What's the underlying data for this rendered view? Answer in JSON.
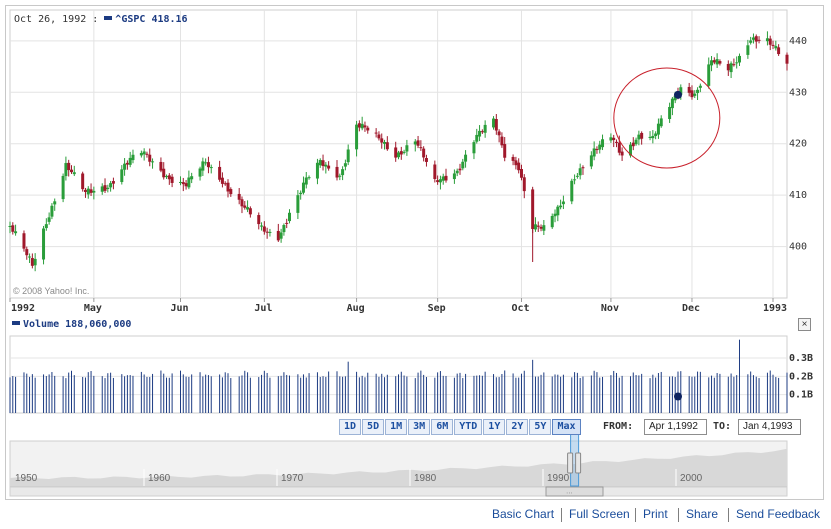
{
  "legend": {
    "date": "Oct 26, 1992 :",
    "symbol": "^GSPC",
    "value": "418.16",
    "volume_label": "Volume",
    "volume_value": "188,060,000"
  },
  "watermark": "© 2008 Yahoo! Inc.",
  "chart_data": [
    {
      "type": "candlestick",
      "series": [
        {
          "name": "^GSPC"
        }
      ],
      "ylim": [
        390,
        446
      ],
      "yticks": [
        400,
        410,
        420,
        430,
        440
      ],
      "xticks": [
        "1992",
        "May",
        "Jun",
        "Jul",
        "Aug",
        "Sep",
        "Oct",
        "Nov",
        "Dec",
        "1993"
      ],
      "x_range": [
        "1992-04-01",
        "1993-01-04"
      ],
      "grid": true,
      "colors": {
        "up": "#2a9d3a",
        "down": "#a0182b",
        "highlight": "#c8202b",
        "marker": "#0e2360"
      },
      "close_points": [
        {
          "x": "1992-04-01",
          "y": 404
        },
        {
          "x": "1992-04-09",
          "y": 396
        },
        {
          "x": "1992-04-14",
          "y": 405
        },
        {
          "x": "1992-04-21",
          "y": 416
        },
        {
          "x": "1992-04-28",
          "y": 410
        },
        {
          "x": "1992-05-06",
          "y": 412
        },
        {
          "x": "1992-05-12",
          "y": 416
        },
        {
          "x": "1992-05-18",
          "y": 418
        },
        {
          "x": "1992-05-27",
          "y": 414
        },
        {
          "x": "1992-06-03",
          "y": 412
        },
        {
          "x": "1992-06-10",
          "y": 416
        },
        {
          "x": "1992-06-16",
          "y": 413
        },
        {
          "x": "1992-06-22",
          "y": 409
        },
        {
          "x": "1992-06-30",
          "y": 403
        },
        {
          "x": "1992-07-06",
          "y": 402
        },
        {
          "x": "1992-07-10",
          "y": 407
        },
        {
          "x": "1992-07-15",
          "y": 412
        },
        {
          "x": "1992-07-21",
          "y": 416
        },
        {
          "x": "1992-07-28",
          "y": 414
        },
        {
          "x": "1992-08-03",
          "y": 424
        },
        {
          "x": "1992-08-10",
          "y": 421
        },
        {
          "x": "1992-08-17",
          "y": 418
        },
        {
          "x": "1992-08-24",
          "y": 421
        },
        {
          "x": "1992-08-31",
          "y": 412
        },
        {
          "x": "1992-09-08",
          "y": 415
        },
        {
          "x": "1992-09-14",
          "y": 421
        },
        {
          "x": "1992-09-21",
          "y": 424
        },
        {
          "x": "1992-09-25",
          "y": 418
        },
        {
          "x": "1992-09-30",
          "y": 416
        },
        {
          "x": "1992-10-05",
          "y": 404
        },
        {
          "x": "1992-10-09",
          "y": 403
        },
        {
          "x": "1992-10-14",
          "y": 407
        },
        {
          "x": "1992-10-20",
          "y": 414
        },
        {
          "x": "1992-10-26",
          "y": 418
        },
        {
          "x": "1992-11-02",
          "y": 421
        },
        {
          "x": "1992-11-06",
          "y": 418
        },
        {
          "x": "1992-11-12",
          "y": 422
        },
        {
          "x": "1992-11-17",
          "y": 421
        },
        {
          "x": "1992-11-23",
          "y": 427
        },
        {
          "x": "1992-11-27",
          "y": 431
        },
        {
          "x": "1992-12-02",
          "y": 430
        },
        {
          "x": "1992-12-08",
          "y": 436
        },
        {
          "x": "1992-12-14",
          "y": 434
        },
        {
          "x": "1992-12-18",
          "y": 437
        },
        {
          "x": "1992-12-22",
          "y": 441
        },
        {
          "x": "1992-12-28",
          "y": 440
        },
        {
          "x": "1993-01-04",
          "y": 435
        }
      ],
      "annotations": [
        {
          "type": "circle",
          "label": "",
          "center": {
            "x": "1992-11-22",
            "y": 425
          }
        },
        {
          "type": "marker",
          "label": "",
          "at": {
            "x": "1992-11-26",
            "y": 429.5
          }
        }
      ]
    },
    {
      "type": "bar",
      "series": [
        {
          "name": "Volume"
        }
      ],
      "yticks": [
        "0.1B",
        "0.2B",
        "0.3B"
      ],
      "ylim": [
        0,
        0.42
      ],
      "values_approx": "mostly ~0.19B-0.22B per day with spikes",
      "spikes": [
        {
          "x": "1992-07-31",
          "value": 0.28
        },
        {
          "x": "1992-10-05",
          "value": 0.29
        },
        {
          "x": "1992-12-18",
          "value": 0.4
        }
      ],
      "annotations": [
        {
          "type": "marker",
          "label": "",
          "at": {
            "x": "1992-11-26",
            "value": 0.09
          }
        }
      ]
    },
    {
      "type": "area",
      "series": [
        {
          "name": "^GSPC history"
        }
      ],
      "xticks": [
        "1950",
        "1960",
        "1970",
        "1980",
        "1990",
        "2000"
      ],
      "selection": [
        "1992",
        "1993"
      ]
    }
  ],
  "range_buttons": [
    "1D",
    "5D",
    "1M",
    "3M",
    "6M",
    "YTD",
    "1Y",
    "2Y",
    "5Y",
    "Max"
  ],
  "range_active": "Max",
  "from_label": "FROM:",
  "from_value": "Apr 1,1992",
  "to_label": "TO:",
  "to_value": "Jan 4,1993",
  "close_symbol": "×",
  "footer_links": [
    "Basic Chart",
    "Full Screen",
    "Print",
    "Share",
    "Send Feedback"
  ]
}
